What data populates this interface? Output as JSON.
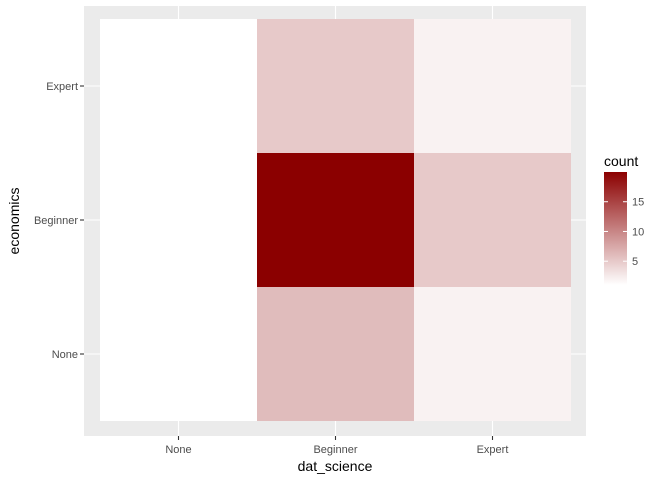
{
  "chart_data": {
    "type": "heatmap",
    "title": "",
    "xlabel": "dat_science",
    "ylabel": "economics",
    "x_categories": [
      "None",
      "Beginner",
      "Expert"
    ],
    "y_categories": [
      "None",
      "Beginner",
      "Expert"
    ],
    "cells": [
      {
        "x": "None",
        "y": "None",
        "count": 0
      },
      {
        "x": "None",
        "y": "Beginner",
        "count": 0
      },
      {
        "x": "None",
        "y": "Expert",
        "count": 0
      },
      {
        "x": "Beginner",
        "y": "None",
        "count": 6
      },
      {
        "x": "Beginner",
        "y": "Beginner",
        "count": 20
      },
      {
        "x": "Beginner",
        "y": "Expert",
        "count": 5
      },
      {
        "x": "Expert",
        "y": "None",
        "count": 2
      },
      {
        "x": "Expert",
        "y": "Beginner",
        "count": 5
      },
      {
        "x": "Expert",
        "y": "Expert",
        "count": 2
      }
    ],
    "legend": {
      "title": "count",
      "breaks": [
        5,
        10,
        15
      ],
      "labels": [
        "5",
        "10",
        "15"
      ],
      "range": [
        1,
        20
      ],
      "low_color": "#ffffff",
      "high_color": "#8b0000",
      "placement": "right"
    },
    "empty_color": "#ffffff",
    "panel_background": "#ebebeb",
    "grid": true
  }
}
